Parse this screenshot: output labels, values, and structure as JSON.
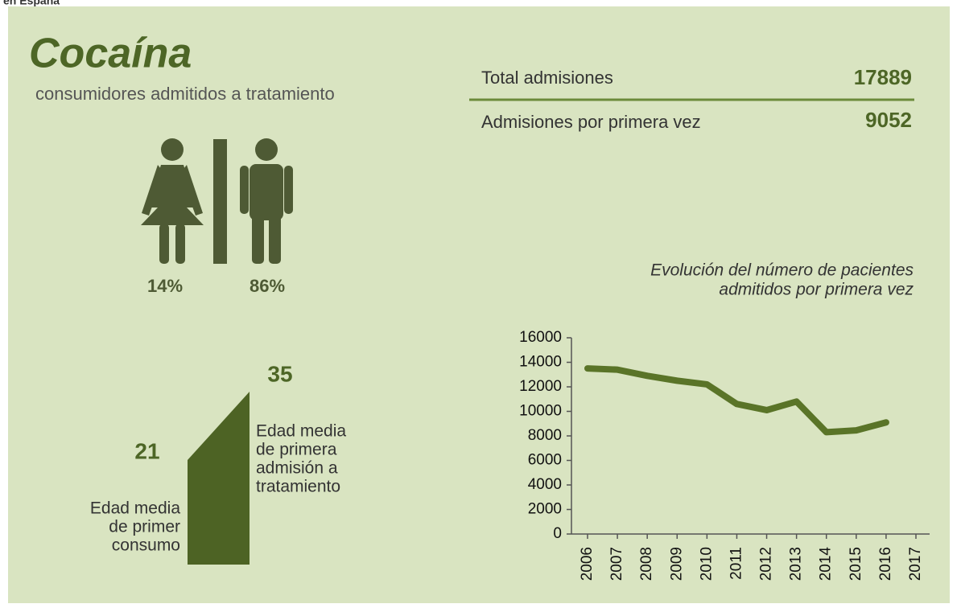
{
  "caption": "en España",
  "header": {
    "title": "Cocaína",
    "subtitle": "consumidores admitidos a tratamiento"
  },
  "stats": [
    {
      "label": "Total admisiones",
      "value": "17889"
    },
    {
      "label": "Admisiones por primera vez",
      "value": "9052"
    }
  ],
  "gender": {
    "women": "14%",
    "men": "86%"
  },
  "ages": {
    "first_use": {
      "value": "21",
      "label": [
        "Edad media",
        "de primer",
        "consumo"
      ]
    },
    "first_admission": {
      "value": "35",
      "label": [
        "Edad media",
        "de primera",
        "admisión a",
        "tratamiento"
      ]
    }
  },
  "chart_data": {
    "type": "line",
    "title": [
      "Evolución del número de pacientes",
      "admitidos por primera vez"
    ],
    "categories": [
      "2006",
      "2007",
      "2008",
      "2009",
      "2010",
      "2011",
      "2012",
      "2013",
      "2014",
      "2015",
      "2016",
      "2017"
    ],
    "values": [
      13500,
      13400,
      12900,
      12500,
      12200,
      10600,
      10100,
      10800,
      8300,
      8450,
      9100,
      null
    ],
    "color": "#5a7428",
    "ylim": [
      0,
      16000
    ],
    "yticks": [
      0,
      2000,
      4000,
      6000,
      8000,
      10000,
      12000,
      14000,
      16000
    ]
  }
}
